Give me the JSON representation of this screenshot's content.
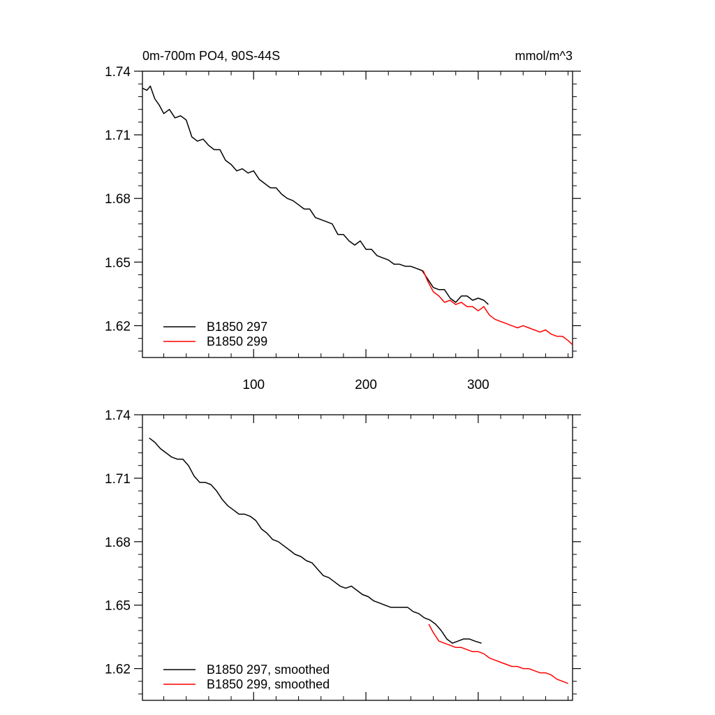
{
  "chart_data": [
    {
      "type": "line",
      "title": "0m-700m PO4, 90S-44S",
      "units": "mmol/m^3",
      "xlim": [
        1,
        384
      ],
      "ylim": [
        1.605,
        1.74
      ],
      "xticks": [
        100,
        200,
        300
      ],
      "xtick_labels": [
        "100",
        "200",
        "300"
      ],
      "yticks": [
        1.62,
        1.65,
        1.68,
        1.71,
        1.74
      ],
      "ytick_labels": [
        "1.62",
        "1.65",
        "1.68",
        "1.71",
        "1.74"
      ],
      "legend_position": "bottom-left",
      "series": [
        {
          "name": "B1850 297",
          "color": "#000000",
          "x": [
            1,
            5,
            8,
            12,
            16,
            20,
            25,
            30,
            35,
            40,
            45,
            50,
            55,
            60,
            65,
            70,
            75,
            80,
            85,
            90,
            95,
            100,
            105,
            110,
            115,
            120,
            125,
            130,
            135,
            140,
            145,
            150,
            155,
            160,
            165,
            170,
            175,
            180,
            185,
            190,
            195,
            200,
            205,
            210,
            215,
            220,
            225,
            230,
            235,
            240,
            245,
            250,
            255,
            260,
            265,
            270,
            275,
            280,
            285,
            290,
            295,
            300,
            305,
            309
          ],
          "values": [
            1.732,
            1.731,
            1.733,
            1.727,
            1.724,
            1.72,
            1.722,
            1.718,
            1.719,
            1.717,
            1.709,
            1.707,
            1.708,
            1.705,
            1.703,
            1.703,
            1.698,
            1.696,
            1.693,
            1.694,
            1.692,
            1.693,
            1.689,
            1.687,
            1.685,
            1.685,
            1.682,
            1.68,
            1.679,
            1.677,
            1.675,
            1.675,
            1.671,
            1.67,
            1.669,
            1.668,
            1.663,
            1.663,
            1.66,
            1.658,
            1.66,
            1.656,
            1.656,
            1.653,
            1.652,
            1.651,
            1.649,
            1.649,
            1.648,
            1.648,
            1.647,
            1.646,
            1.642,
            1.638,
            1.637,
            1.637,
            1.633,
            1.631,
            1.634,
            1.634,
            1.632,
            1.633,
            1.632,
            1.63
          ]
        },
        {
          "name": "B1850 299",
          "color": "#ff0000",
          "x": [
            251,
            255,
            260,
            265,
            270,
            275,
            280,
            285,
            290,
            295,
            300,
            305,
            310,
            315,
            320,
            325,
            330,
            335,
            340,
            345,
            350,
            355,
            360,
            365,
            370,
            375,
            380,
            384
          ],
          "values": [
            1.646,
            1.641,
            1.636,
            1.634,
            1.631,
            1.632,
            1.63,
            1.631,
            1.629,
            1.629,
            1.627,
            1.629,
            1.625,
            1.623,
            1.622,
            1.621,
            1.62,
            1.619,
            1.62,
            1.619,
            1.618,
            1.617,
            1.618,
            1.616,
            1.615,
            1.615,
            1.613,
            1.611
          ]
        }
      ]
    },
    {
      "type": "line",
      "xlim": [
        1,
        384
      ],
      "ylim": [
        1.605,
        1.74
      ],
      "xticks": [
        100,
        200,
        300
      ],
      "yticks": [
        1.62,
        1.65,
        1.68,
        1.71,
        1.74
      ],
      "ytick_labels": [
        "1.62",
        "1.65",
        "1.68",
        "1.71",
        "1.74"
      ],
      "legend_position": "bottom-left",
      "series": [
        {
          "name": "B1850 297, smoothed",
          "color": "#000000",
          "x": [
            7,
            12,
            17,
            22,
            27,
            32,
            37,
            42,
            47,
            52,
            57,
            62,
            67,
            72,
            77,
            82,
            87,
            92,
            97,
            102,
            107,
            112,
            117,
            122,
            127,
            132,
            137,
            142,
            147,
            152,
            157,
            162,
            167,
            172,
            177,
            182,
            187,
            192,
            197,
            202,
            207,
            212,
            217,
            222,
            227,
            232,
            237,
            242,
            247,
            252,
            257,
            262,
            267,
            272,
            277,
            282,
            287,
            292,
            297,
            303
          ],
          "values": [
            1.729,
            1.727,
            1.724,
            1.722,
            1.72,
            1.719,
            1.719,
            1.716,
            1.711,
            1.708,
            1.708,
            1.707,
            1.704,
            1.7,
            1.697,
            1.695,
            1.693,
            1.693,
            1.692,
            1.69,
            1.686,
            1.684,
            1.681,
            1.68,
            1.678,
            1.676,
            1.674,
            1.673,
            1.671,
            1.67,
            1.667,
            1.664,
            1.663,
            1.661,
            1.659,
            1.658,
            1.659,
            1.657,
            1.655,
            1.654,
            1.652,
            1.651,
            1.65,
            1.649,
            1.649,
            1.649,
            1.649,
            1.647,
            1.646,
            1.644,
            1.643,
            1.641,
            1.638,
            1.634,
            1.632,
            1.633,
            1.634,
            1.634,
            1.633,
            1.632
          ]
        },
        {
          "name": "B1850 299, smoothed",
          "color": "#ff0000",
          "x": [
            256,
            260,
            265,
            270,
            275,
            280,
            285,
            290,
            295,
            300,
            305,
            310,
            315,
            320,
            325,
            330,
            335,
            340,
            345,
            350,
            355,
            360,
            365,
            370,
            375,
            380
          ],
          "values": [
            1.641,
            1.637,
            1.633,
            1.632,
            1.631,
            1.63,
            1.63,
            1.629,
            1.628,
            1.628,
            1.627,
            1.625,
            1.624,
            1.623,
            1.622,
            1.621,
            1.621,
            1.62,
            1.62,
            1.619,
            1.618,
            1.618,
            1.617,
            1.615,
            1.614,
            1.613
          ]
        }
      ]
    }
  ]
}
